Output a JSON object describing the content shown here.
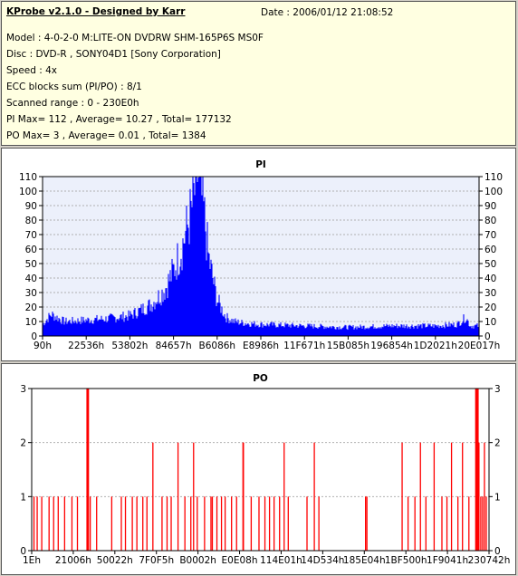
{
  "header": {
    "app_title": "KProbe v2.1.0 - Designed by Karr",
    "date": "Date : 2006/01/12 21:08:52",
    "lines": [
      "Model : 4-0-2-0 M:LITE-ON DVDRW SHM-165P6S MS0F",
      "Disc : DVD-R , SONY04D1 [Sony Corporation]",
      "Speed : 4x",
      "ECC blocks sum (PI/PO) : 8/1",
      "Scanned range : 0 - 230E0h",
      "PI Max= 112 , Average= 10.27 , Total= 177132",
      "PO Max= 3 , Average= 0.01 , Total= 1384"
    ]
  },
  "colors": {
    "pi_fill": "#0000ff",
    "po_bar": "#ff0000",
    "plot_bg_pi": "#ecf0fb",
    "plot_bg_po": "#ffffff",
    "grid": "#b0b0b0",
    "axis": "#000000"
  },
  "chart_data": [
    {
      "type": "area",
      "title": "PI",
      "ylim": [
        0,
        110
      ],
      "yticks": [
        "0",
        "10",
        "20",
        "30",
        "40",
        "50",
        "60",
        "70",
        "80",
        "90",
        "100",
        "110"
      ],
      "xticks": [
        "90h",
        "22536h",
        "53802h",
        "84657h",
        "B6086h",
        "E8986h",
        "11F671h",
        "15B085h",
        "196854h",
        "1D2021h",
        "20E017h"
      ],
      "grid": true,
      "profile": {
        "x": [
          0,
          0.02,
          0.05,
          0.1,
          0.15,
          0.2,
          0.25,
          0.28,
          0.3,
          0.32,
          0.34,
          0.35,
          0.355,
          0.36,
          0.37,
          0.38,
          0.4,
          0.42,
          0.44,
          0.46,
          0.5,
          0.6,
          0.7,
          0.8,
          0.9,
          0.95,
          0.97,
          0.98,
          1.0
        ],
        "y": [
          8,
          15,
          10,
          11,
          12,
          14,
          22,
          32,
          45,
          62,
          85,
          102,
          112,
          105,
          85,
          55,
          25,
          13,
          10,
          9,
          8,
          7,
          6,
          7,
          7,
          8,
          13,
          7,
          7
        ]
      }
    },
    {
      "type": "bar",
      "title": "PO",
      "ylim": [
        0,
        3
      ],
      "yticks": [
        "0",
        "1",
        "2",
        "3"
      ],
      "xticks": [
        "1Eh",
        "21006h",
        "50022h",
        "7F0F5h",
        "B0002h",
        "E0E08h",
        "114E01h",
        "14D534h",
        "185E04h",
        "1BF500h",
        "1F9041h",
        "230742h"
      ],
      "grid": true,
      "bars": [
        {
          "x": 0.005,
          "v": 1
        },
        {
          "x": 0.012,
          "v": 1
        },
        {
          "x": 0.022,
          "v": 1
        },
        {
          "x": 0.038,
          "v": 1
        },
        {
          "x": 0.048,
          "v": 1
        },
        {
          "x": 0.058,
          "v": 1
        },
        {
          "x": 0.072,
          "v": 1
        },
        {
          "x": 0.088,
          "v": 1
        },
        {
          "x": 0.1,
          "v": 1
        },
        {
          "x": 0.122,
          "v": 3
        },
        {
          "x": 0.123,
          "v": 3
        },
        {
          "x": 0.128,
          "v": 1
        },
        {
          "x": 0.142,
          "v": 1
        },
        {
          "x": 0.175,
          "v": 1
        },
        {
          "x": 0.196,
          "v": 1
        },
        {
          "x": 0.205,
          "v": 1
        },
        {
          "x": 0.22,
          "v": 1
        },
        {
          "x": 0.23,
          "v": 1
        },
        {
          "x": 0.243,
          "v": 1
        },
        {
          "x": 0.252,
          "v": 1
        },
        {
          "x": 0.265,
          "v": 2
        },
        {
          "x": 0.285,
          "v": 1
        },
        {
          "x": 0.296,
          "v": 1
        },
        {
          "x": 0.305,
          "v": 1
        },
        {
          "x": 0.32,
          "v": 2
        },
        {
          "x": 0.335,
          "v": 1
        },
        {
          "x": 0.348,
          "v": 1
        },
        {
          "x": 0.354,
          "v": 2
        },
        {
          "x": 0.362,
          "v": 1
        },
        {
          "x": 0.378,
          "v": 1
        },
        {
          "x": 0.392,
          "v": 1
        },
        {
          "x": 0.395,
          "v": 1
        },
        {
          "x": 0.405,
          "v": 1
        },
        {
          "x": 0.415,
          "v": 1
        },
        {
          "x": 0.423,
          "v": 1
        },
        {
          "x": 0.437,
          "v": 1
        },
        {
          "x": 0.448,
          "v": 1
        },
        {
          "x": 0.462,
          "v": 2
        },
        {
          "x": 0.463,
          "v": 2
        },
        {
          "x": 0.48,
          "v": 1
        },
        {
          "x": 0.497,
          "v": 1
        },
        {
          "x": 0.51,
          "v": 1
        },
        {
          "x": 0.52,
          "v": 1
        },
        {
          "x": 0.53,
          "v": 1
        },
        {
          "x": 0.542,
          "v": 1
        },
        {
          "x": 0.552,
          "v": 2
        },
        {
          "x": 0.561,
          "v": 1
        },
        {
          "x": 0.602,
          "v": 1
        },
        {
          "x": 0.618,
          "v": 2
        },
        {
          "x": 0.628,
          "v": 1
        },
        {
          "x": 0.73,
          "v": 1
        },
        {
          "x": 0.733,
          "v": 1
        },
        {
          "x": 0.81,
          "v": 2
        },
        {
          "x": 0.823,
          "v": 1
        },
        {
          "x": 0.838,
          "v": 1
        },
        {
          "x": 0.85,
          "v": 2
        },
        {
          "x": 0.862,
          "v": 1
        },
        {
          "x": 0.88,
          "v": 2
        },
        {
          "x": 0.897,
          "v": 1
        },
        {
          "x": 0.908,
          "v": 1
        },
        {
          "x": 0.918,
          "v": 2
        },
        {
          "x": 0.932,
          "v": 1
        },
        {
          "x": 0.942,
          "v": 2
        },
        {
          "x": 0.956,
          "v": 1
        },
        {
          "x": 0.972,
          "v": 3
        },
        {
          "x": 0.975,
          "v": 3
        },
        {
          "x": 0.978,
          "v": 2
        },
        {
          "x": 0.982,
          "v": 1
        },
        {
          "x": 0.986,
          "v": 1
        },
        {
          "x": 0.99,
          "v": 2
        },
        {
          "x": 0.994,
          "v": 1
        }
      ]
    }
  ]
}
